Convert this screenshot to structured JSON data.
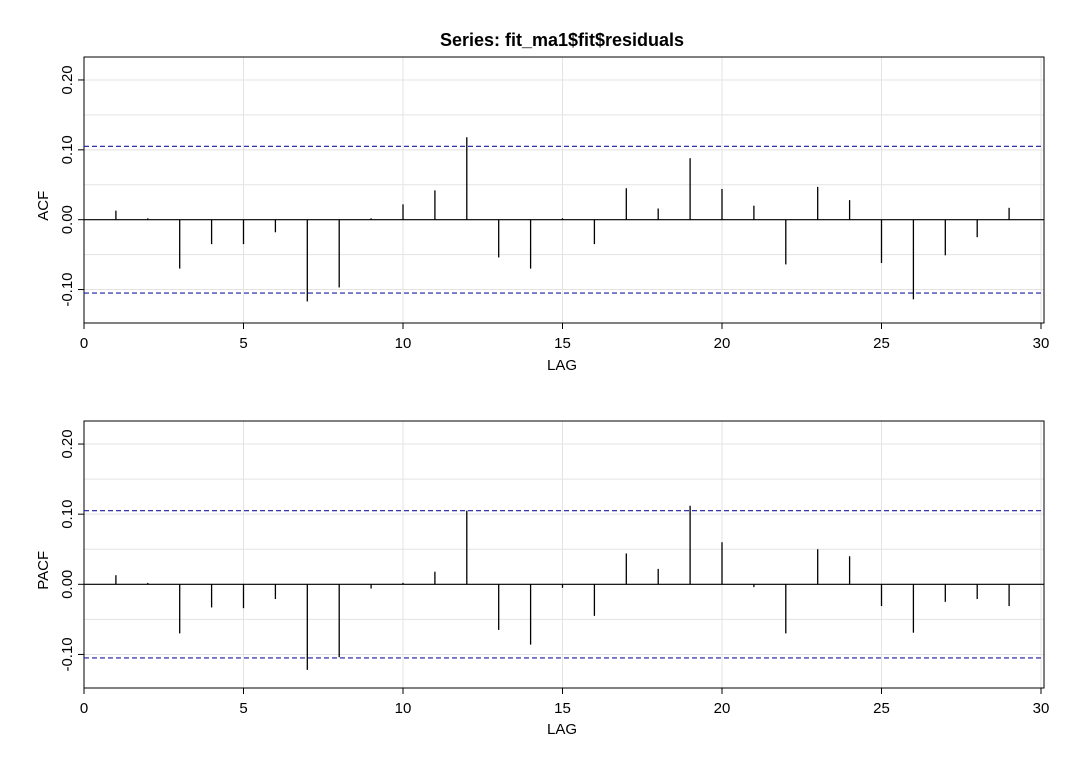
{
  "chart_data": [
    {
      "type": "bar",
      "title": "Series:  fit_ma1$fit$residuals",
      "xlabel": "LAG",
      "ylabel": "ACF",
      "xlim": [
        0,
        30
      ],
      "ylim": [
        -0.145,
        0.23
      ],
      "x_ticks": [
        0,
        5,
        10,
        15,
        20,
        25,
        30
      ],
      "x_tick_labels": [
        "0",
        "5",
        "10",
        "15",
        "20",
        "25",
        "30"
      ],
      "y_ticks": [
        -0.1,
        0.0,
        0.1,
        0.2
      ],
      "y_tick_labels": [
        "-0.10",
        "0.00",
        "0.10",
        "0.20"
      ],
      "grid": true,
      "confidence_bound": 0.105,
      "lags": [
        1,
        2,
        3,
        4,
        5,
        6,
        7,
        8,
        9,
        10,
        11,
        12,
        13,
        14,
        15,
        16,
        17,
        18,
        19,
        20,
        21,
        22,
        23,
        24,
        25,
        26,
        27,
        28,
        29
      ],
      "values": [
        0.013,
        0.002,
        -0.07,
        -0.035,
        -0.035,
        -0.018,
        -0.117,
        -0.097,
        0.002,
        0.022,
        0.042,
        0.118,
        -0.054,
        -0.07,
        0.002,
        -0.035,
        0.045,
        0.016,
        0.088,
        0.044,
        0.02,
        -0.064,
        0.047,
        0.028,
        -0.062,
        -0.114,
        -0.051,
        -0.025,
        0.017
      ]
    },
    {
      "type": "bar",
      "title": "",
      "xlabel": "LAG",
      "ylabel": "PACF",
      "xlim": [
        0,
        30
      ],
      "ylim": [
        -0.145,
        0.23
      ],
      "x_ticks": [
        0,
        5,
        10,
        15,
        20,
        25,
        30
      ],
      "x_tick_labels": [
        "0",
        "5",
        "10",
        "15",
        "20",
        "25",
        "30"
      ],
      "y_ticks": [
        -0.1,
        0.0,
        0.1,
        0.2
      ],
      "y_tick_labels": [
        "-0.10",
        "0.00",
        "0.10",
        "0.20"
      ],
      "grid": true,
      "confidence_bound": 0.105,
      "lags": [
        1,
        2,
        3,
        4,
        5,
        6,
        7,
        8,
        9,
        10,
        11,
        12,
        13,
        14,
        15,
        16,
        17,
        18,
        19,
        20,
        21,
        22,
        23,
        24,
        25,
        26,
        27,
        28,
        29
      ],
      "values": [
        0.013,
        0.002,
        -0.07,
        -0.033,
        -0.034,
        -0.021,
        -0.122,
        -0.104,
        -0.006,
        0.002,
        0.018,
        0.105,
        -0.065,
        -0.086,
        -0.005,
        -0.045,
        0.044,
        0.022,
        0.112,
        0.06,
        -0.004,
        -0.07,
        0.05,
        0.04,
        -0.031,
        -0.069,
        -0.025,
        -0.021,
        -0.031
      ]
    }
  ]
}
